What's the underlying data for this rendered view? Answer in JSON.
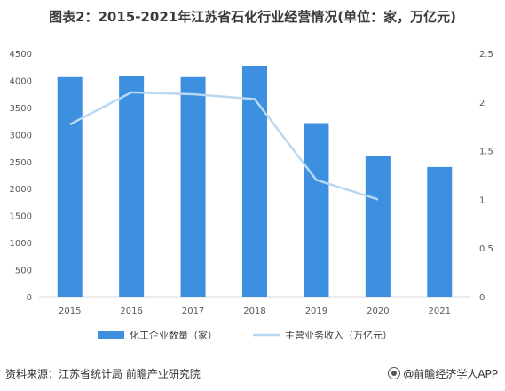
{
  "title": "图表2：2015-2021年江苏省石化行业经营情况(单位：家，万亿元)",
  "source": "资料来源：江苏省统计局 前瞻产业研究院",
  "brand": "@前瞻经济学人APP",
  "chart_data": {
    "type": "bar",
    "categories": [
      "2015",
      "2016",
      "2017",
      "2018",
      "2019",
      "2020",
      "2021"
    ],
    "series": [
      {
        "name": "化工企业数量（家）",
        "type": "bar",
        "axis": "left",
        "color": "#3d8fe0",
        "values": [
          4060,
          4080,
          4060,
          4270,
          3210,
          2600,
          2400
        ]
      },
      {
        "name": "主营业务收入（万亿元）",
        "type": "line",
        "axis": "right",
        "color": "#b8d8f2",
        "values": [
          1.77,
          2.1,
          2.08,
          2.03,
          1.2,
          1.0,
          null
        ]
      }
    ],
    "y_left": {
      "min": 0,
      "max": 4500,
      "ticks": [
        0,
        500,
        1000,
        1500,
        2000,
        2500,
        3000,
        3500,
        4000,
        4500
      ]
    },
    "y_right": {
      "min": 0,
      "max": 2.5,
      "ticks": [
        "0",
        "0.5",
        "1",
        "1.5",
        "2",
        "2.5"
      ]
    },
    "legend_position": "bottom",
    "grid": false
  }
}
